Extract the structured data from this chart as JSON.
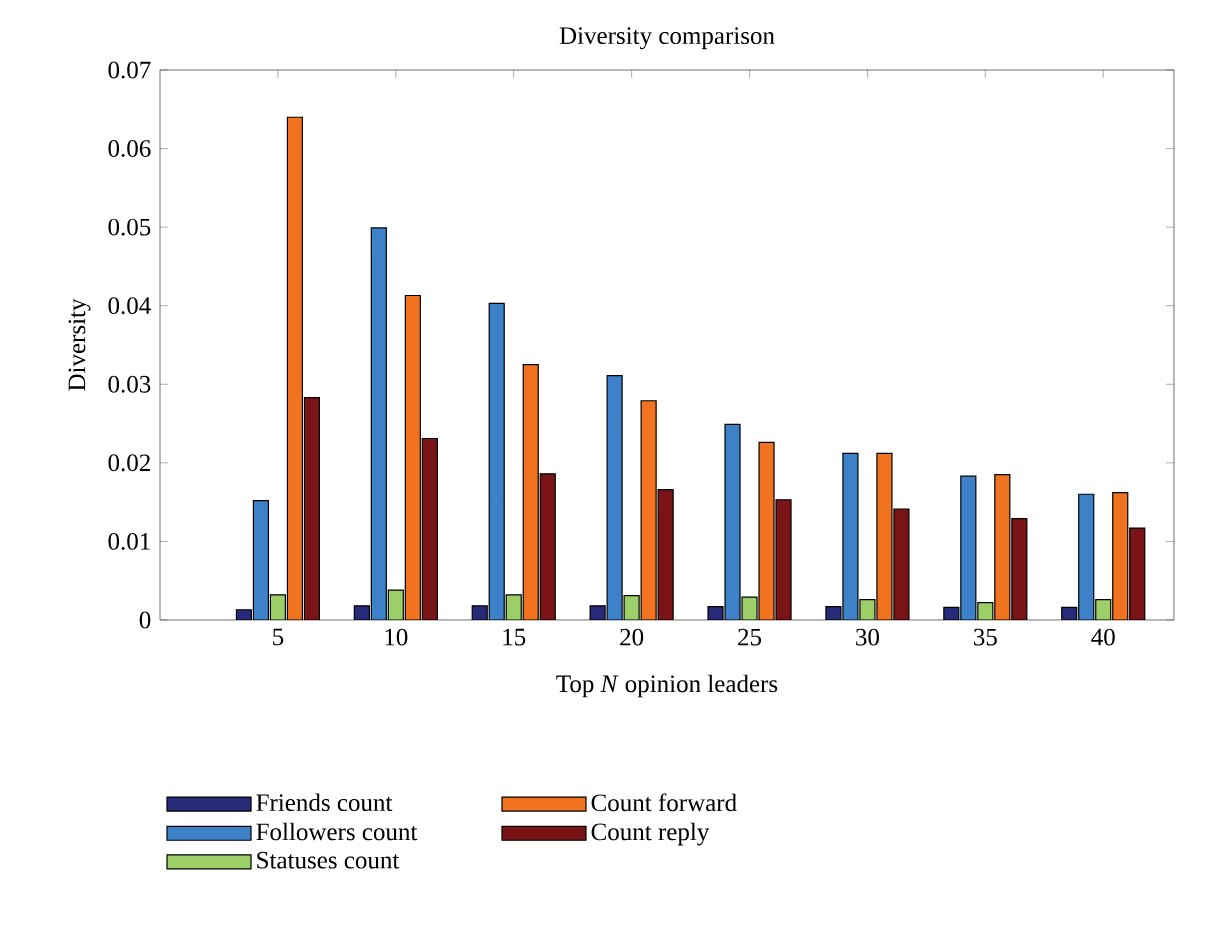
{
  "chart_data": {
    "type": "bar",
    "title": "Diversity comparison",
    "xlabel": "Top *N* opinion leaders",
    "ylabel": "Diversity",
    "categories": [
      "5",
      "10",
      "15",
      "20",
      "25",
      "30",
      "35",
      "40"
    ],
    "series": [
      {
        "name": "Friends count",
        "color": "#262a78",
        "values": [
          0.0013,
          0.0018,
          0.0018,
          0.0018,
          0.0017,
          0.0017,
          0.0016,
          0.0016
        ]
      },
      {
        "name": "Followers count",
        "color": "#3d82c8",
        "values": [
          0.0152,
          0.0499,
          0.0403,
          0.0311,
          0.0249,
          0.0212,
          0.0183,
          0.016
        ]
      },
      {
        "name": "Statuses count",
        "color": "#9dcf68",
        "values": [
          0.0032,
          0.0038,
          0.0032,
          0.0031,
          0.0029,
          0.0026,
          0.0022,
          0.0026
        ]
      },
      {
        "name": "Count forward",
        "color": "#f2731f",
        "values": [
          0.064,
          0.0413,
          0.0325,
          0.0279,
          0.0226,
          0.0212,
          0.0185,
          0.0162
        ]
      },
      {
        "name": "Count reply",
        "color": "#7a1416",
        "values": [
          0.0283,
          0.0231,
          0.0186,
          0.0166,
          0.0153,
          0.0141,
          0.0129,
          0.0117
        ]
      }
    ],
    "ylim": [
      0,
      0.07
    ],
    "yticks": [
      0,
      0.01,
      0.02,
      0.03,
      0.04,
      0.05,
      0.06,
      0.07
    ],
    "grid": false,
    "legend": "bottom"
  }
}
